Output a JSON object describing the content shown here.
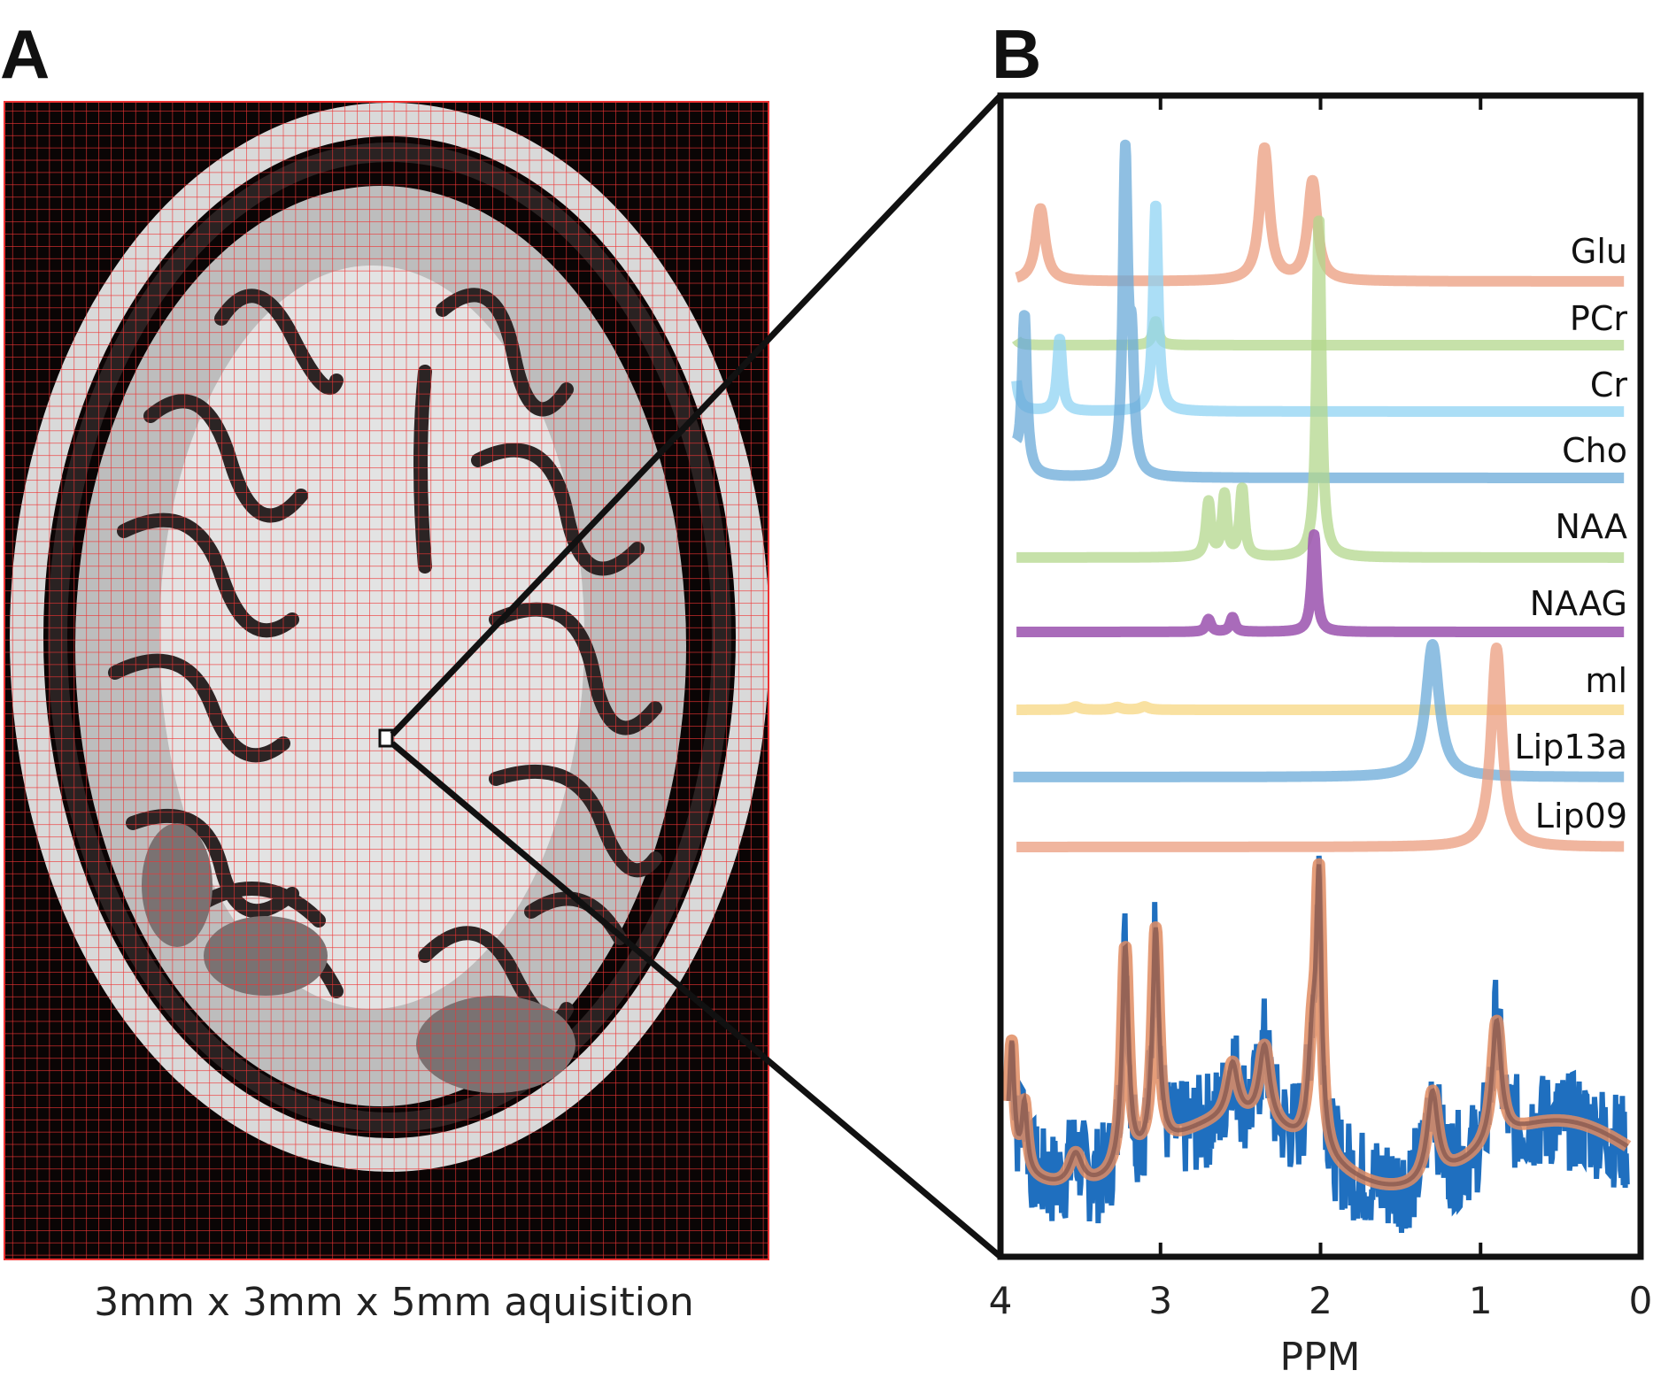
{
  "panel_a": {
    "label": "A",
    "caption": "3mm x 3mm x 5mm aquisition"
  },
  "panel_b": {
    "label": "B"
  },
  "colors": {
    "glu": "#EB9C7E",
    "pcr": "#B3D78C",
    "cr": "#8FD3F3",
    "cho": "#6AAAD8",
    "naa": "#B3D78C",
    "naag": "#A05BB3",
    "ml": "#F7D98A",
    "lip13a": "#6AAAD8",
    "lip09": "#EB9C7E",
    "data": "#1F6FBF",
    "fit": "#E08C62",
    "fit_inner": "#8A5A50",
    "grid": "#E33",
    "frame": "#111"
  },
  "chart_data": {
    "type": "line",
    "title": "",
    "xlabel": "PPM",
    "ylabel": "",
    "xlim": [
      4,
      0
    ],
    "x_ticks": [
      "4",
      "3",
      "2",
      "1",
      "0"
    ],
    "grid": false,
    "series": [
      {
        "name": "Glu",
        "peaks": [
          {
            "ppm": 3.75,
            "amp": 0.55
          },
          {
            "ppm": 2.35,
            "amp": 1.0
          },
          {
            "ppm": 2.05,
            "amp": 0.75
          }
        ]
      },
      {
        "name": "PCr",
        "peaks": [
          {
            "ppm": 3.93,
            "amp": 0.35
          },
          {
            "ppm": 3.03,
            "amp": 0.45
          }
        ]
      },
      {
        "name": "Cr",
        "peaks": [
          {
            "ppm": 3.93,
            "amp": 0.55
          },
          {
            "ppm": 3.63,
            "amp": 0.35
          },
          {
            "ppm": 3.03,
            "amp": 1.0
          }
        ]
      },
      {
        "name": "Cho",
        "peaks": [
          {
            "ppm": 3.97,
            "amp": 1.0
          },
          {
            "ppm": 3.85,
            "amp": 0.5
          },
          {
            "ppm": 3.22,
            "amp": 1.0
          },
          {
            "ppm": 3.18,
            "amp": 0.35
          }
        ]
      },
      {
        "name": "NAA",
        "peaks": [
          {
            "ppm": 2.01,
            "amp": 1.0
          },
          {
            "ppm": 2.49,
            "amp": 0.2
          },
          {
            "ppm": 2.6,
            "amp": 0.18
          },
          {
            "ppm": 2.7,
            "amp": 0.16
          }
        ]
      },
      {
        "name": "NAAG",
        "peaks": [
          {
            "ppm": 2.04,
            "amp": 1.0
          },
          {
            "ppm": 2.55,
            "amp": 0.15
          },
          {
            "ppm": 2.7,
            "amp": 0.13
          }
        ]
      },
      {
        "name": "ml",
        "peaks": [
          {
            "ppm": 3.53,
            "amp": 0.15
          },
          {
            "ppm": 3.27,
            "amp": 0.12
          },
          {
            "ppm": 3.1,
            "amp": 0.15
          }
        ]
      },
      {
        "name": "Lip13a",
        "peaks": [
          {
            "ppm": 1.3,
            "amp": 1.0
          }
        ]
      },
      {
        "name": "Lip09",
        "peaks": [
          {
            "ppm": 0.9,
            "amp": 1.0
          }
        ]
      }
    ]
  }
}
